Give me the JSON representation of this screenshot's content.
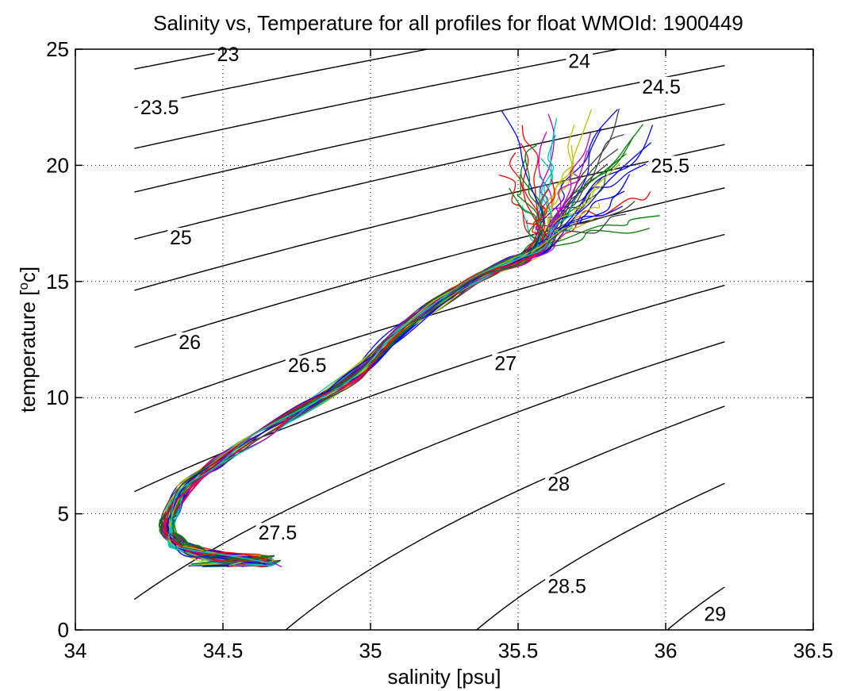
{
  "chart_data": {
    "type": "line",
    "title": "Salinity vs, Temperature for all profiles for float WMOId: 1900449",
    "xlabel": "salinity [psu]",
    "ylabel_main": "temperature [",
    "ylabel_super": "o",
    "ylabel_tail": "c]",
    "xlim": [
      34,
      36.5
    ],
    "ylim": [
      0,
      25
    ],
    "xticks": [
      34,
      34.5,
      35,
      35.5,
      36,
      36.5
    ],
    "xtick_labels": [
      "34",
      "34.5",
      "35",
      "35.5",
      "36",
      "36.5"
    ],
    "yticks": [
      0,
      5,
      10,
      15,
      20,
      25
    ],
    "ytick_labels": [
      "0",
      "5",
      "10",
      "15",
      "20",
      "25"
    ],
    "grid": true,
    "density_contours": {
      "salinity_range": [
        34.2,
        36.2
      ],
      "levels": [
        23,
        23.5,
        24,
        24.5,
        25,
        25.5,
        26,
        26.5,
        27,
        27.5,
        28,
        28.5,
        29
      ],
      "labels": [
        {
          "text": "23",
          "s": 34.48,
          "t": 24.8
        },
        {
          "text": "24",
          "s": 35.67,
          "t": 24.5
        },
        {
          "text": "23.5",
          "s": 34.22,
          "t": 22.5
        },
        {
          "text": "24.5",
          "s": 35.92,
          "t": 23.4
        },
        {
          "text": "25.5",
          "s": 35.95,
          "t": 20.0
        },
        {
          "text": "25",
          "s": 34.32,
          "t": 16.9
        },
        {
          "text": "26",
          "s": 34.35,
          "t": 12.4
        },
        {
          "text": "26.5",
          "s": 34.72,
          "t": 11.4
        },
        {
          "text": "27",
          "s": 35.42,
          "t": 11.5
        },
        {
          "text": "28",
          "s": 35.6,
          "t": 6.3
        },
        {
          "text": "27.5",
          "s": 34.62,
          "t": 4.2
        },
        {
          "text": "28.5",
          "s": 35.6,
          "t": 1.9
        },
        {
          "text": "29",
          "s": 36.13,
          "t": 0.7
        }
      ]
    },
    "profiles": {
      "colors": [
        "#0000ff",
        "#008000",
        "#ff0000",
        "#00bfbf",
        "#bf00bf",
        "#bfbf00",
        "#404040"
      ],
      "count": 60,
      "mean_curve": [
        {
          "s": 34.78,
          "t": 2.85
        },
        {
          "s": 34.65,
          "t": 2.95
        },
        {
          "s": 34.5,
          "t": 3.1
        },
        {
          "s": 34.4,
          "t": 3.4
        },
        {
          "s": 34.34,
          "t": 3.8
        },
        {
          "s": 34.31,
          "t": 4.4
        },
        {
          "s": 34.33,
          "t": 5.2
        },
        {
          "s": 34.38,
          "t": 6.2
        },
        {
          "s": 34.48,
          "t": 7.2
        },
        {
          "s": 34.62,
          "t": 8.4
        },
        {
          "s": 34.78,
          "t": 9.6
        },
        {
          "s": 34.95,
          "t": 11.0
        },
        {
          "s": 35.08,
          "t": 12.6
        },
        {
          "s": 35.22,
          "t": 14.0
        },
        {
          "s": 35.38,
          "t": 15.1
        },
        {
          "s": 35.5,
          "t": 15.9
        },
        {
          "s": 35.58,
          "t": 16.5
        }
      ],
      "upper_end": {
        "s_range": [
          35.45,
          35.98
        ],
        "t_range": [
          16.8,
          22.5
        ]
      }
    }
  }
}
